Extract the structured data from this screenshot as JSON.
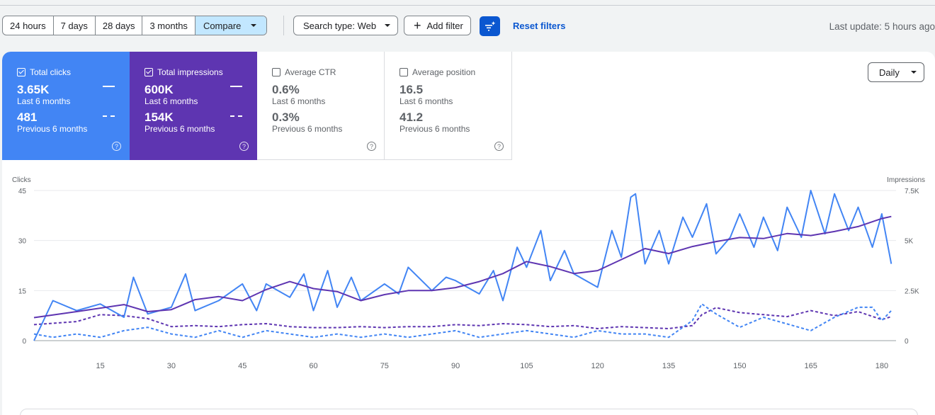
{
  "toolbar": {
    "ranges": [
      "24 hours",
      "7 days",
      "28 days",
      "3 months"
    ],
    "compare_label": "Compare",
    "search_type_label": "Search type: Web",
    "add_filter_label": "Add filter",
    "reset_label": "Reset filters",
    "last_update": "Last update: 5 hours ago"
  },
  "metrics": {
    "clicks": {
      "label": "Total clicks",
      "current": "3.65K",
      "current_period": "Last 6 months",
      "previous": "481",
      "previous_period": "Previous 6 months",
      "checked": true
    },
    "impressions": {
      "label": "Total impressions",
      "current": "600K",
      "current_period": "Last 6 months",
      "previous": "154K",
      "previous_period": "Previous 6 months",
      "checked": true
    },
    "ctr": {
      "label": "Average CTR",
      "current": "0.6%",
      "current_period": "Last 6 months",
      "previous": "0.3%",
      "previous_period": "Previous 6 months",
      "checked": false
    },
    "position": {
      "label": "Average position",
      "current": "16.5",
      "current_period": "Last 6 months",
      "previous": "41.2",
      "previous_period": "Previous 6 months",
      "checked": false
    }
  },
  "granularity_label": "Daily",
  "colors": {
    "clicks": "#4285f4",
    "impressions": "#5e35b1",
    "link": "#0b57d0",
    "compare_bg": "#c2e7ff"
  },
  "icons": {
    "help": "help-circle-icon",
    "filter": "filter-sparkle-icon",
    "add": "plus-icon",
    "dropdown": "caret-down-icon"
  },
  "chart_data": {
    "type": "line",
    "ylabel_left": "Clicks",
    "ylabel_right": "Impressions",
    "y_ticks_left": [
      "0",
      "15",
      "30",
      "45"
    ],
    "y_ticks_right": [
      "0",
      "2.5K",
      "5K",
      "7.5K"
    ],
    "x_ticks": [
      "15",
      "30",
      "45",
      "60",
      "75",
      "90",
      "105",
      "120",
      "135",
      "150",
      "165",
      "180"
    ],
    "xlim": [
      1,
      183
    ],
    "ylim_left": [
      0,
      45
    ],
    "ylim_right": [
      0,
      7500
    ],
    "grid": true,
    "series": [
      {
        "key": "clicks_current",
        "axis": "left",
        "dashed": false,
        "x": [
          1,
          5,
          10,
          15,
          20,
          22,
          25,
          30,
          33,
          35,
          40,
          45,
          48,
          50,
          55,
          58,
          60,
          63,
          65,
          68,
          70,
          75,
          78,
          80,
          85,
          88,
          90,
          95,
          98,
          100,
          103,
          105,
          108,
          110,
          113,
          115,
          120,
          123,
          125,
          127,
          128,
          130,
          133,
          135,
          138,
          140,
          143,
          145,
          148,
          150,
          153,
          155,
          158,
          160,
          163,
          165,
          168,
          170,
          173,
          175,
          178,
          180,
          182
        ],
        "values": [
          0,
          12,
          9,
          11,
          7,
          19,
          8,
          10,
          20,
          9,
          12,
          17,
          9,
          17,
          13,
          20,
          9,
          21,
          10,
          19,
          12,
          17,
          14,
          22,
          15,
          19,
          18,
          14,
          21,
          12,
          28,
          22,
          33,
          18,
          27,
          20,
          16,
          33,
          25,
          43,
          44,
          23,
          33,
          23,
          37,
          31,
          41,
          26,
          31,
          38,
          28,
          37,
          27,
          40,
          31,
          45,
          32,
          44,
          33,
          40,
          28,
          38,
          23
        ]
      },
      {
        "key": "impressions_current",
        "axis": "right",
        "dashed": false,
        "x": [
          1,
          10,
          20,
          25,
          30,
          35,
          40,
          45,
          50,
          55,
          60,
          65,
          70,
          75,
          80,
          85,
          90,
          95,
          100,
          105,
          110,
          115,
          120,
          125,
          130,
          135,
          140,
          145,
          150,
          155,
          160,
          165,
          170,
          175,
          180,
          182
        ],
        "values": [
          1150,
          1450,
          1800,
          1450,
          1550,
          2050,
          2200,
          2000,
          2550,
          2950,
          2600,
          2450,
          2000,
          2300,
          2500,
          2500,
          2650,
          2950,
          3350,
          3950,
          3700,
          3350,
          3500,
          4050,
          4600,
          4350,
          4700,
          4950,
          5150,
          5100,
          5350,
          5250,
          5450,
          5700,
          6100,
          6200
        ]
      },
      {
        "key": "clicks_previous",
        "axis": "left",
        "dashed": true,
        "x": [
          1,
          5,
          10,
          15,
          20,
          25,
          30,
          35,
          40,
          45,
          50,
          55,
          60,
          65,
          70,
          75,
          80,
          85,
          90,
          95,
          100,
          105,
          110,
          115,
          120,
          125,
          130,
          135,
          140,
          142,
          145,
          150,
          155,
          160,
          165,
          170,
          175,
          178,
          180,
          182
        ],
        "values": [
          2,
          1,
          2,
          1,
          3,
          4,
          2,
          1,
          3,
          1,
          3,
          2,
          1,
          2,
          1,
          2,
          1,
          2,
          3,
          1,
          2,
          3,
          2,
          1,
          3,
          2,
          2,
          1,
          6,
          11,
          8,
          4,
          7,
          5,
          3,
          7,
          10,
          10,
          6,
          9
        ]
      },
      {
        "key": "impressions_previous",
        "axis": "right",
        "dashed": true,
        "x": [
          1,
          10,
          15,
          20,
          25,
          30,
          35,
          40,
          45,
          50,
          55,
          60,
          65,
          70,
          75,
          80,
          85,
          90,
          95,
          100,
          105,
          110,
          115,
          120,
          125,
          130,
          135,
          140,
          142,
          145,
          150,
          155,
          160,
          165,
          170,
          175,
          180,
          182
        ],
        "values": [
          800,
          950,
          1300,
          1250,
          1100,
          700,
          750,
          700,
          800,
          850,
          700,
          650,
          650,
          700,
          650,
          700,
          700,
          800,
          750,
          850,
          800,
          700,
          750,
          600,
          700,
          650,
          600,
          750,
          1300,
          1650,
          1400,
          1300,
          1200,
          1500,
          1250,
          1450,
          1050,
          1200
        ]
      }
    ]
  }
}
